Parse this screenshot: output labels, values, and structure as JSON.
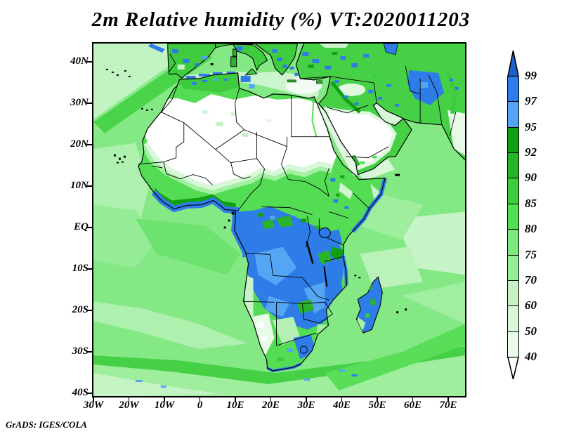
{
  "title": "2m Relative humidity (%) VT:2020011203",
  "credit": "GrADS: IGES/COLA",
  "chart_data": {
    "type": "heatmap",
    "title": "2m Relative humidity (%) VT:2020011203",
    "variable": "2m Relative humidity",
    "units": "%",
    "valid_time_label": "VT:2020011203",
    "x_axis": {
      "labels": [
        "30W",
        "20W",
        "10W",
        "0",
        "10E",
        "20E",
        "30E",
        "40E",
        "50E",
        "60E",
        "70E"
      ]
    },
    "y_axis": {
      "labels": [
        "40N",
        "30N",
        "20N",
        "10N",
        "EQ",
        "10S",
        "20S",
        "30S",
        "40S"
      ]
    },
    "colorbar": {
      "tick_labels": [
        "99",
        "97",
        "95",
        "92",
        "90",
        "85",
        "80",
        "75",
        "70",
        "60",
        "50",
        "40"
      ],
      "segment_colors_top_to_bottom": [
        "#2e7ce8",
        "#55a5f5",
        "#12a012",
        "#28b428",
        "#3ecc3e",
        "#52e052",
        "#7ee87e",
        "#96ee96",
        "#c4f2c4",
        "#d8f6d8",
        "#eafbea"
      ],
      "above_max_color": "#1e60d0",
      "below_min_color": "#ffffff"
    },
    "map_features_summary": [
      "Very high humidity (95-99%, blues) over the Congo basin, Gulf of Guinea coast, southern-central Africa, Madagascar and a Turkey-Caspian-Afghanistan belt",
      "Very low humidity (below 40-50%, white) over the Sahara, Arabian Peninsula and Namib coast",
      "Moderate humidity (greens) over the Atlantic and Indian Oceans"
    ]
  }
}
